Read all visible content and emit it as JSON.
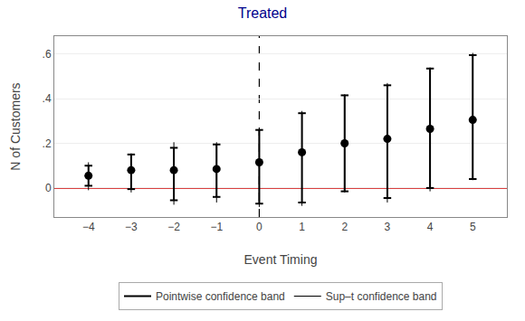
{
  "chart_data": {
    "type": "scatter",
    "title": "Treated",
    "title_color": "#00008B",
    "x_label": "Event Timing",
    "y_label": "N of Customers",
    "x": [
      -4,
      -3,
      -2,
      -1,
      0,
      1,
      2,
      3,
      4,
      5
    ],
    "values": [
      0.055,
      0.08,
      0.08,
      0.085,
      0.115,
      0.16,
      0.2,
      0.22,
      0.265,
      0.305
    ],
    "color": "black",
    "marker": "circle",
    "bands": [
      {
        "name": "Pointwise confidence band",
        "color": "black",
        "low": [
          0.01,
          -0.005,
          -0.055,
          -0.04,
          -0.07,
          -0.065,
          -0.015,
          -0.045,
          0.0,
          0.04
        ],
        "high": [
          0.1,
          0.15,
          0.18,
          0.195,
          0.26,
          0.335,
          0.415,
          0.46,
          0.535,
          0.595
        ]
      },
      {
        "name": "Sup–t confidence band",
        "color": "black",
        "low": [
          -0.01,
          -0.02,
          -0.075,
          -0.065,
          -0.085,
          -0.08,
          -0.02,
          -0.065,
          -0.015,
          0.035
        ],
        "high": [
          0.115,
          0.155,
          0.205,
          0.205,
          0.265,
          0.345,
          0.42,
          0.47,
          0.54,
          0.605
        ]
      }
    ],
    "hlines": [
      {
        "value": 0,
        "color": "#CC0000",
        "line_style": "solid"
      }
    ],
    "vlines": [
      {
        "value": 0,
        "color": "black",
        "line_style": "dashed"
      }
    ],
    "xlim": [
      -4.8,
      5.8
    ],
    "ylim": [
      -0.13,
      0.68
    ],
    "xticks": [
      {
        "value": -4,
        "label": "−4"
      },
      {
        "value": -3,
        "label": "−3"
      },
      {
        "value": -2,
        "label": "−2"
      },
      {
        "value": -1,
        "label": "−1"
      },
      0,
      1,
      2,
      3,
      4,
      5
    ],
    "yticks": [
      0,
      {
        "value": 0.2,
        "label": ".2"
      },
      {
        "value": 0.4,
        "label": ".4"
      },
      {
        "value": 0.6,
        "label": ".6"
      }
    ],
    "grid": true,
    "legend": "bottom"
  }
}
